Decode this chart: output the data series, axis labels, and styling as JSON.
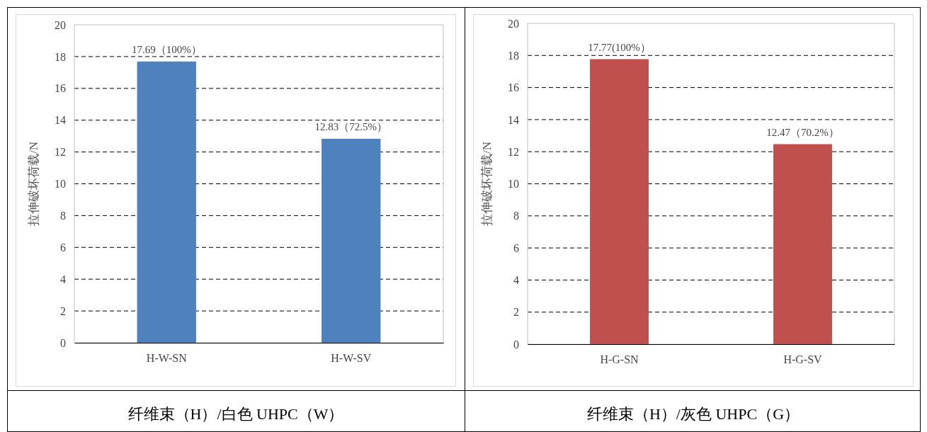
{
  "chart_data": [
    {
      "type": "bar",
      "categories": [
        "H-W-SN",
        "H-W-SV"
      ],
      "values": [
        17.69,
        12.83
      ],
      "color": "#4f81bd",
      "value_labels": [
        "17.69（100%）",
        "12.83（72.5%）"
      ],
      "ylabel": "拉伸破坏荷载/N",
      "ylim": [
        0,
        20
      ],
      "yticks": [
        0,
        2,
        4,
        6,
        8,
        10,
        12,
        14,
        16,
        18,
        20
      ],
      "grid": "y",
      "annotations": [
        "纤维束（H）/白色 UHPC（W）"
      ]
    },
    {
      "type": "bar",
      "categories": [
        "H-G-SN",
        "H-G-SV"
      ],
      "values": [
        17.77,
        12.47
      ],
      "color": "#c0504d",
      "value_labels": [
        "17.77(100%）",
        "12.47（70.2%）"
      ],
      "ylabel": "拉伸破坏荷载/N",
      "ylim": [
        0,
        20
      ],
      "yticks": [
        0,
        2,
        4,
        6,
        8,
        10,
        12,
        14,
        16,
        18,
        20
      ],
      "grid": "y",
      "annotations": [
        "纤维束（H）/灰色 UHPC（G）"
      ]
    }
  ]
}
